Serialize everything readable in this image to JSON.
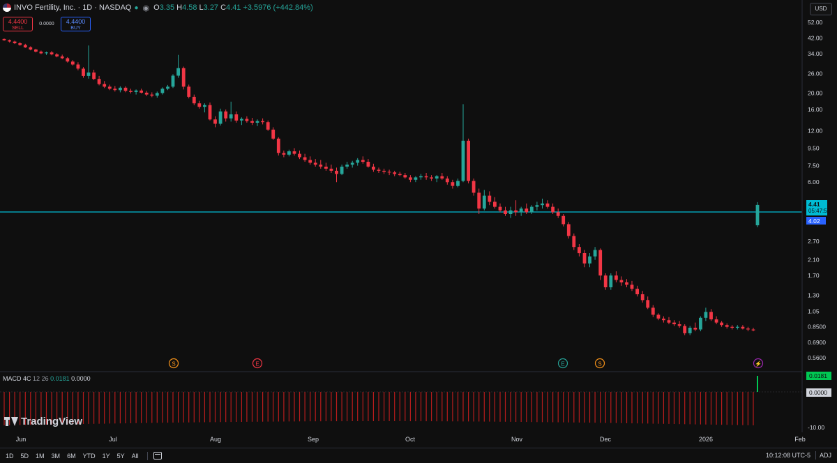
{
  "header": {
    "symbol_title": "INVO Fertility, Inc. · 1D · NASDAQ",
    "ohlc": [
      {
        "k": "O",
        "v": "3.35"
      },
      {
        "k": "H",
        "v": "4.58"
      },
      {
        "k": "L",
        "v": "3.27"
      },
      {
        "k": "C",
        "v": "4.41"
      }
    ],
    "change": "+3.5976 (+442.84%)"
  },
  "trade": {
    "sell_price": "4.4400",
    "sell_label": "SELL",
    "spread": "0.0000",
    "buy_price": "4.4400",
    "buy_label": "BUY"
  },
  "currency": "USD",
  "price_axis": [
    "52.00",
    "42.00",
    "34.00",
    "26.00",
    "20.00",
    "16.00",
    "12.00",
    "9.50",
    "7.50",
    "6.00",
    "2.70",
    "2.10",
    "1.70",
    "1.30",
    "1.05",
    "0.8500",
    "0.6900",
    "0.5600"
  ],
  "last_price": {
    "price": "4.41",
    "countdown": "05:47:51",
    "prev": "4.02"
  },
  "events": [
    {
      "icon": "S",
      "kind": "split",
      "color": "#f7931a"
    },
    {
      "icon": "E",
      "kind": "earnings",
      "color": "#f23645"
    },
    {
      "icon": "E",
      "kind": "earnings",
      "color": "#26a69a"
    },
    {
      "icon": "S",
      "kind": "split",
      "color": "#f7931a"
    },
    {
      "icon": "⚡",
      "kind": "news",
      "color": "#9c27b0"
    }
  ],
  "macd": {
    "name": "MACD 4C",
    "fast": "12",
    "slow": "26",
    "value": "0.0181",
    "signal": "0.0000",
    "axis_value": "0.0181",
    "axis_zero": "0.0000",
    "axis_low": "-10.00"
  },
  "watermark": "TradingView",
  "time_axis": [
    "Jun",
    "Jul",
    "Aug",
    "Sep",
    "Oct",
    "Nov",
    "Dec",
    "2026",
    "Feb"
  ],
  "bottom": {
    "ranges": [
      "1D",
      "5D",
      "1M",
      "3M",
      "6M",
      "YTD",
      "1Y",
      "5Y",
      "All"
    ],
    "clock": "10:12:08 UTC-5",
    "adj": "ADJ"
  },
  "colors": {
    "up": "#26a69a",
    "down": "#f23645",
    "price_line": "#00bcd4",
    "background": "#0f0f0f"
  },
  "chart_data": {
    "type": "candlestick",
    "scale": "log",
    "ylim": [
      0.56,
      52
    ],
    "points": [
      [
        41.5,
        41.8,
        40.5,
        40.8
      ],
      [
        40.8,
        41.2,
        39.6,
        40.1
      ],
      [
        40.1,
        40.6,
        38.8,
        39.2
      ],
      [
        39.2,
        39.8,
        37.9,
        38.3
      ],
      [
        38.3,
        38.9,
        36.8,
        37.1
      ],
      [
        37.1,
        37.6,
        35.6,
        36.0
      ],
      [
        36.0,
        36.4,
        34.6,
        35.0
      ],
      [
        35.0,
        35.5,
        33.8,
        34.2
      ],
      [
        34.2,
        35.0,
        33.5,
        34.6
      ],
      [
        34.6,
        35.3,
        33.3,
        33.7
      ],
      [
        33.7,
        34.3,
        32.4,
        32.8
      ],
      [
        32.8,
        33.6,
        31.6,
        32.0
      ],
      [
        32.0,
        32.5,
        30.2,
        30.6
      ],
      [
        30.6,
        31.2,
        29.0,
        29.4
      ],
      [
        29.4,
        30.3,
        27.2,
        27.8
      ],
      [
        27.8,
        28.4,
        24.6,
        25.2
      ],
      [
        25.2,
        38.0,
        24.3,
        26.4
      ],
      [
        26.4,
        27.4,
        23.8,
        24.2
      ],
      [
        24.2,
        25.2,
        22.2,
        22.6
      ],
      [
        22.6,
        23.5,
        21.4,
        21.8
      ],
      [
        21.8,
        22.4,
        20.8,
        21.2
      ],
      [
        21.2,
        22.0,
        20.4,
        20.8
      ],
      [
        20.8,
        21.9,
        20.2,
        21.5
      ],
      [
        21.5,
        21.9,
        20.2,
        20.6
      ],
      [
        20.6,
        21.2,
        19.9,
        20.3
      ],
      [
        20.3,
        21.0,
        19.6,
        20.7
      ],
      [
        20.7,
        21.2,
        19.9,
        20.1
      ],
      [
        20.1,
        20.6,
        19.2,
        19.6
      ],
      [
        19.6,
        20.2,
        18.9,
        19.3
      ],
      [
        19.3,
        20.4,
        18.8,
        20.0
      ],
      [
        20.0,
        21.6,
        19.6,
        21.2
      ],
      [
        21.2,
        22.3,
        20.8,
        21.8
      ],
      [
        21.8,
        25.8,
        21.4,
        25.3
      ],
      [
        25.3,
        33.5,
        24.6,
        28.0
      ],
      [
        28.0,
        28.6,
        21.0,
        21.8
      ],
      [
        21.8,
        22.4,
        18.6,
        19.0
      ],
      [
        19.0,
        19.6,
        17.0,
        17.4
      ],
      [
        17.4,
        18.0,
        16.2,
        16.6
      ],
      [
        16.6,
        17.4,
        15.4,
        17.0
      ],
      [
        17.0,
        17.6,
        13.8,
        14.0
      ],
      [
        14.0,
        14.6,
        12.6,
        13.2
      ],
      [
        13.2,
        16.2,
        12.9,
        15.6
      ],
      [
        15.6,
        16.0,
        13.6,
        14.2
      ],
      [
        14.2,
        17.8,
        13.6,
        15.0
      ],
      [
        15.0,
        15.6,
        13.4,
        13.8
      ],
      [
        13.8,
        14.4,
        13.0,
        14.1
      ],
      [
        14.1,
        14.6,
        13.4,
        13.7
      ],
      [
        13.7,
        14.3,
        13.0,
        13.4
      ],
      [
        13.4,
        14.0,
        12.8,
        13.7
      ],
      [
        13.7,
        14.2,
        13.1,
        13.5
      ],
      [
        13.5,
        13.8,
        12.0,
        12.2
      ],
      [
        12.2,
        12.6,
        10.6,
        10.8
      ],
      [
        10.8,
        11.0,
        8.6,
        8.9
      ],
      [
        8.9,
        9.2,
        8.4,
        8.7
      ],
      [
        8.7,
        9.3,
        8.5,
        9.1
      ],
      [
        9.1,
        9.5,
        8.6,
        8.8
      ],
      [
        8.8,
        9.2,
        8.2,
        8.4
      ],
      [
        8.4,
        8.8,
        7.9,
        8.1
      ],
      [
        8.1,
        8.5,
        7.6,
        7.8
      ],
      [
        7.8,
        8.2,
        7.4,
        7.6
      ],
      [
        7.6,
        8.1,
        7.2,
        7.4
      ],
      [
        7.4,
        7.8,
        7.0,
        7.2
      ],
      [
        7.2,
        7.6,
        6.8,
        7.0
      ],
      [
        7.0,
        7.3,
        6.0,
        6.7
      ],
      [
        6.7,
        7.6,
        6.6,
        7.4
      ],
      [
        7.4,
        7.9,
        7.2,
        7.6
      ],
      [
        7.6,
        8.0,
        7.3,
        7.8
      ],
      [
        7.8,
        8.3,
        7.5,
        8.1
      ],
      [
        8.1,
        8.5,
        7.7,
        7.9
      ],
      [
        7.9,
        8.2,
        7.3,
        7.4
      ],
      [
        7.4,
        7.7,
        6.9,
        7.1
      ],
      [
        7.1,
        7.3,
        6.8,
        7.0
      ],
      [
        7.0,
        7.2,
        6.7,
        6.9
      ],
      [
        6.9,
        7.1,
        6.6,
        6.85
      ],
      [
        6.85,
        7.0,
        6.5,
        6.7
      ],
      [
        6.7,
        6.9,
        6.5,
        6.6
      ],
      [
        6.6,
        6.8,
        6.3,
        6.4
      ],
      [
        6.4,
        6.6,
        6.0,
        6.2
      ],
      [
        6.2,
        6.5,
        6.0,
        6.4
      ],
      [
        6.4,
        6.7,
        6.2,
        6.5
      ],
      [
        6.5,
        6.8,
        6.2,
        6.4
      ],
      [
        6.4,
        6.6,
        6.1,
        6.3
      ],
      [
        6.3,
        6.6,
        6.0,
        6.5
      ],
      [
        6.5,
        6.8,
        6.2,
        6.3
      ],
      [
        6.3,
        6.5,
        5.8,
        6.0
      ],
      [
        6.0,
        6.2,
        5.5,
        5.7
      ],
      [
        5.7,
        6.3,
        5.6,
        6.1
      ],
      [
        6.1,
        17.2,
        6.0,
        10.5
      ],
      [
        10.5,
        10.8,
        5.9,
        6.1
      ],
      [
        6.1,
        6.3,
        5.0,
        5.2
      ],
      [
        5.2,
        5.5,
        3.9,
        4.2
      ],
      [
        4.2,
        5.4,
        4.1,
        5.0
      ],
      [
        5.0,
        5.3,
        4.4,
        4.6
      ],
      [
        4.6,
        4.9,
        4.2,
        4.3
      ],
      [
        4.3,
        4.5,
        4.0,
        4.1
      ],
      [
        4.1,
        4.3,
        3.8,
        3.9
      ],
      [
        3.9,
        4.3,
        3.7,
        4.1
      ],
      [
        4.1,
        4.7,
        3.8,
        4.0
      ],
      [
        4.0,
        4.3,
        3.8,
        4.2
      ],
      [
        4.2,
        4.5,
        3.9,
        4.0
      ],
      [
        4.0,
        4.4,
        3.9,
        4.3
      ],
      [
        4.3,
        4.6,
        4.1,
        4.4
      ],
      [
        4.4,
        4.8,
        4.2,
        4.5
      ],
      [
        4.5,
        4.7,
        4.2,
        4.3
      ],
      [
        4.3,
        4.5,
        3.9,
        4.0
      ],
      [
        4.0,
        4.2,
        3.7,
        3.8
      ],
      [
        3.8,
        3.9,
        3.3,
        3.4
      ],
      [
        3.4,
        3.5,
        2.8,
        2.9
      ],
      [
        2.9,
        3.0,
        2.4,
        2.5
      ],
      [
        2.5,
        2.6,
        2.2,
        2.3
      ],
      [
        2.3,
        2.4,
        1.9,
        2.0
      ],
      [
        2.0,
        2.3,
        1.9,
        2.2
      ],
      [
        2.2,
        2.5,
        2.1,
        2.4
      ],
      [
        2.4,
        2.45,
        1.6,
        1.7
      ],
      [
        1.7,
        1.75,
        1.4,
        1.45
      ],
      [
        1.45,
        1.75,
        1.4,
        1.7
      ],
      [
        1.7,
        1.8,
        1.55,
        1.6
      ],
      [
        1.6,
        1.68,
        1.48,
        1.55
      ],
      [
        1.55,
        1.62,
        1.45,
        1.5
      ],
      [
        1.5,
        1.58,
        1.38,
        1.42
      ],
      [
        1.42,
        1.48,
        1.28,
        1.32
      ],
      [
        1.32,
        1.38,
        1.18,
        1.22
      ],
      [
        1.22,
        1.28,
        1.08,
        1.1
      ],
      [
        1.1,
        1.14,
        0.97,
        1.0
      ],
      [
        1.0,
        1.02,
        0.93,
        0.95
      ],
      [
        0.95,
        0.98,
        0.9,
        0.93
      ],
      [
        0.93,
        0.97,
        0.88,
        0.9
      ],
      [
        0.9,
        0.93,
        0.86,
        0.88
      ],
      [
        0.88,
        0.92,
        0.84,
        0.86
      ],
      [
        0.86,
        0.88,
        0.76,
        0.78
      ],
      [
        0.78,
        0.86,
        0.76,
        0.84
      ],
      [
        0.84,
        0.9,
        0.8,
        0.82
      ],
      [
        0.82,
        0.98,
        0.8,
        0.96
      ],
      [
        0.96,
        1.1,
        0.92,
        1.04
      ],
      [
        1.04,
        1.08,
        0.92,
        0.94
      ],
      [
        0.94,
        0.98,
        0.88,
        0.9
      ],
      [
        0.9,
        0.92,
        0.85,
        0.87
      ],
      [
        0.87,
        0.89,
        0.83,
        0.85
      ],
      [
        0.85,
        0.87,
        0.82,
        0.84
      ],
      [
        0.84,
        0.87,
        0.82,
        0.85
      ],
      [
        0.85,
        0.87,
        0.82,
        0.83
      ],
      [
        0.83,
        0.85,
        0.8,
        0.82
      ],
      [
        0.82,
        0.84,
        0.8,
        0.81
      ]
    ],
    "last": [
      3.35,
      4.58,
      3.27,
      4.41
    ]
  }
}
